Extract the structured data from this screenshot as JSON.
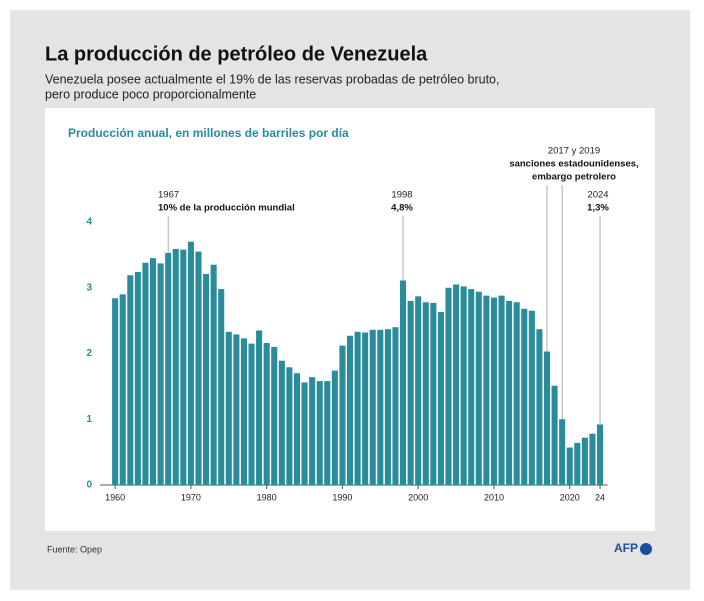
{
  "chart_data": {
    "type": "bar",
    "title": "La producción de petróleo de Venezuela",
    "subtitle": [
      "Venezuela posee actualmente el 19% de las reservas probadas de petróleo bruto,",
      "pero produce poco proporcionalmente"
    ],
    "y_label": "Producción anual, en millones de barriles por día",
    "source": "Fuente: Opep",
    "logo": "AFP",
    "color": "#2a8b9b",
    "x": [
      1960,
      1961,
      1962,
      1963,
      1964,
      1965,
      1966,
      1967,
      1968,
      1969,
      1970,
      1971,
      1972,
      1973,
      1974,
      1975,
      1976,
      1977,
      1978,
      1979,
      1980,
      1981,
      1982,
      1983,
      1984,
      1985,
      1986,
      1987,
      1988,
      1989,
      1990,
      1991,
      1992,
      1993,
      1994,
      1995,
      1996,
      1997,
      1998,
      1999,
      2000,
      2001,
      2002,
      2003,
      2004,
      2005,
      2006,
      2007,
      2008,
      2009,
      2010,
      2011,
      2012,
      2013,
      2014,
      2015,
      2016,
      2017,
      2018,
      2019,
      2020,
      2021,
      2022,
      2023,
      2024
    ],
    "values": [
      2.84,
      2.9,
      3.19,
      3.24,
      3.38,
      3.45,
      3.37,
      3.53,
      3.59,
      3.58,
      3.7,
      3.55,
      3.21,
      3.35,
      2.98,
      2.33,
      2.29,
      2.23,
      2.15,
      2.35,
      2.16,
      2.1,
      1.89,
      1.79,
      1.7,
      1.56,
      1.64,
      1.58,
      1.58,
      1.74,
      2.12,
      2.27,
      2.33,
      2.32,
      2.36,
      2.36,
      2.37,
      2.4,
      3.11,
      2.8,
      2.87,
      2.78,
      2.77,
      2.63,
      3.0,
      3.05,
      3.02,
      2.98,
      2.94,
      2.88,
      2.85,
      2.88,
      2.8,
      2.78,
      2.68,
      2.65,
      2.37,
      2.03,
      1.51,
      1.0,
      0.57,
      0.64,
      0.72,
      0.78,
      0.92
    ],
    "xlim": [
      1958,
      2025
    ],
    "ylim": [
      0,
      4
    ],
    "xticks": [
      1960,
      1970,
      1980,
      1990,
      2000,
      2010,
      2020,
      {
        "value": 2024,
        "label": "24"
      }
    ],
    "yticks": [
      0,
      1,
      2,
      3,
      4
    ],
    "annotations": [
      {
        "x": [
          1967
        ],
        "label": "1967",
        "detail": [
          "10% de la producción mundial"
        ]
      },
      {
        "x": [
          1998
        ],
        "label": "1998",
        "detail": [
          "4,8%"
        ]
      },
      {
        "x": [
          2017,
          2019
        ],
        "label": "2017 y 2019",
        "detail": [
          "sanciones estadounidenses,",
          "embargo petrolero"
        ]
      },
      {
        "x": [
          2024
        ],
        "label": "2024",
        "detail": [
          "1,3%"
        ]
      }
    ]
  }
}
